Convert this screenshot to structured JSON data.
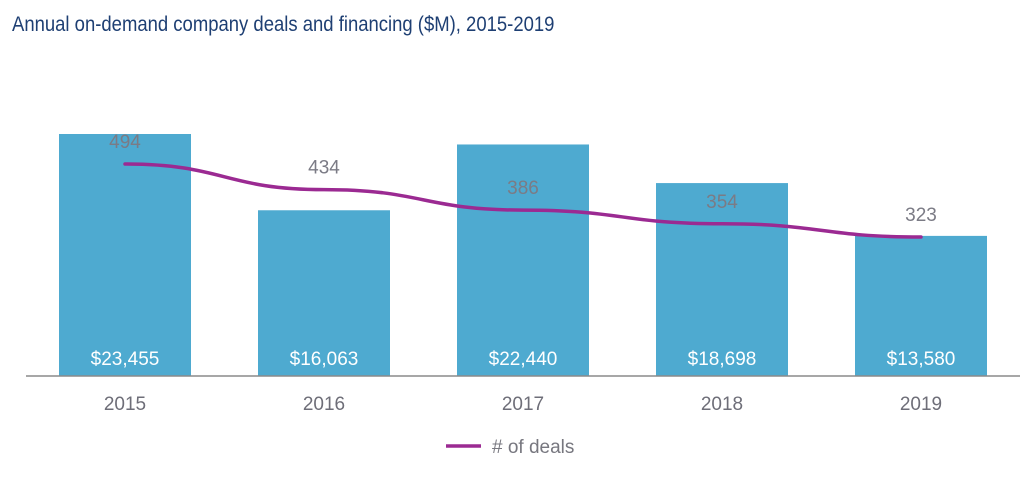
{
  "chart_data": {
    "type": "bar",
    "title": "Annual on-demand company deals and financing ($M), 2015-2019",
    "xlabel": "",
    "ylabel": "",
    "categories": [
      "2015",
      "2016",
      "2017",
      "2018",
      "2019"
    ],
    "series": [
      {
        "name": "Financing ($M)",
        "type": "bar",
        "values": [
          23455,
          16063,
          22440,
          18698,
          13580
        ],
        "labels": [
          "$23,455",
          "$16,063",
          "$22,440",
          "$18,698",
          "$13,580"
        ],
        "color": "#4eaad0"
      },
      {
        "name": "# of deals",
        "type": "line",
        "values": [
          494,
          434,
          386,
          354,
          323
        ],
        "labels": [
          "494",
          "434",
          "386",
          "354",
          "323"
        ],
        "color": "#9b2a92"
      }
    ],
    "legend": {
      "position": "bottom-center",
      "entries": [
        "# of deals"
      ]
    },
    "grid": false
  }
}
